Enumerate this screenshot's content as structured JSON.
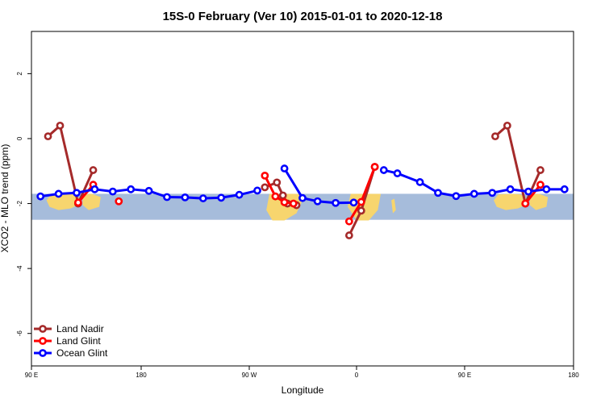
{
  "chart_data": {
    "type": "line",
    "title": "15S-0 February (Ver 10)   2015-01-01 to 2020-12-18",
    "xlabel": "Longitude",
    "ylabel": "XCO2 - MLO trend (ppm)",
    "x_tick_labels": [
      "90 E",
      "180",
      "90 W",
      "0",
      "90 E",
      "180"
    ],
    "y_tick_labels": [
      "2",
      "0",
      "-2",
      "-4",
      "-6"
    ],
    "y_ticks": [
      2,
      0,
      -2,
      -4,
      -6
    ],
    "xlim": [
      90,
      450
    ],
    "ylim": [
      -7,
      3.3
    ],
    "band": {
      "ymin": -2.5,
      "ymax": -1.7,
      "color": "#a6bcdb",
      "land_color": "#f7d56e"
    },
    "legend_position": "bottom-left",
    "series": [
      {
        "name": "Land Nadir",
        "color": "#a52a2a",
        "segments": [
          [
            [
              101,
              0.07
            ],
            [
              109,
              0.4
            ],
            [
              121,
              -2.0
            ],
            [
              131,
              -0.97
            ]
          ],
          [
            [
              245,
              -1.5
            ],
            [
              253,
              -1.35
            ],
            [
              257,
              -1.75
            ],
            [
              260,
              -2.0
            ],
            [
              266,
              -2.05
            ]
          ],
          [
            [
              301,
              -2.98
            ],
            [
              309,
              -2.22
            ],
            [
              318,
              -0.87
            ]
          ],
          [
            [
              398,
              0.07
            ],
            [
              406,
              0.4
            ],
            [
              418,
              -2.0
            ],
            [
              428,
              -0.97
            ]
          ]
        ]
      },
      {
        "name": "Land Glint",
        "color": "#ff0000",
        "segments": [
          [
            [
              121,
              -1.97
            ],
            [
              131,
              -1.42
            ]
          ],
          [
            [
              148,
              -1.93
            ]
          ],
          [
            [
              245,
              -1.14
            ],
            [
              252,
              -1.78
            ],
            [
              258,
              -1.96
            ],
            [
              264,
              -2.0
            ]
          ],
          [
            [
              301,
              -2.55
            ],
            [
              309,
              -1.95
            ],
            [
              318,
              -0.87
            ]
          ],
          [
            [
              418,
              -2.0
            ],
            [
              428,
              -1.42
            ]
          ]
        ]
      },
      {
        "name": "Ocean Glint",
        "color": "#0000ff",
        "segments": [
          [
            [
              96,
              -1.78
            ],
            [
              108,
              -1.7
            ],
            [
              120,
              -1.67
            ],
            [
              132,
              -1.56
            ],
            [
              144,
              -1.63
            ],
            [
              156,
              -1.56
            ],
            [
              168,
              -1.61
            ],
            [
              180,
              -1.8
            ],
            [
              192,
              -1.81
            ],
            [
              204,
              -1.84
            ],
            [
              216,
              -1.82
            ],
            [
              228,
              -1.73
            ],
            [
              240,
              -1.6
            ]
          ],
          [
            [
              258,
              -0.92
            ],
            [
              270,
              -1.83
            ],
            [
              280,
              -1.93
            ],
            [
              292,
              -1.98
            ],
            [
              304,
              -1.97
            ]
          ],
          [
            [
              324,
              -0.97
            ],
            [
              333,
              -1.07
            ],
            [
              348,
              -1.34
            ],
            [
              360,
              -1.67
            ],
            [
              372,
              -1.77
            ],
            [
              384,
              -1.7
            ],
            [
              396,
              -1.67
            ],
            [
              408,
              -1.56
            ],
            [
              420,
              -1.63
            ],
            [
              432,
              -1.56
            ],
            [
              444,
              -1.56
            ]
          ]
        ]
      }
    ]
  }
}
